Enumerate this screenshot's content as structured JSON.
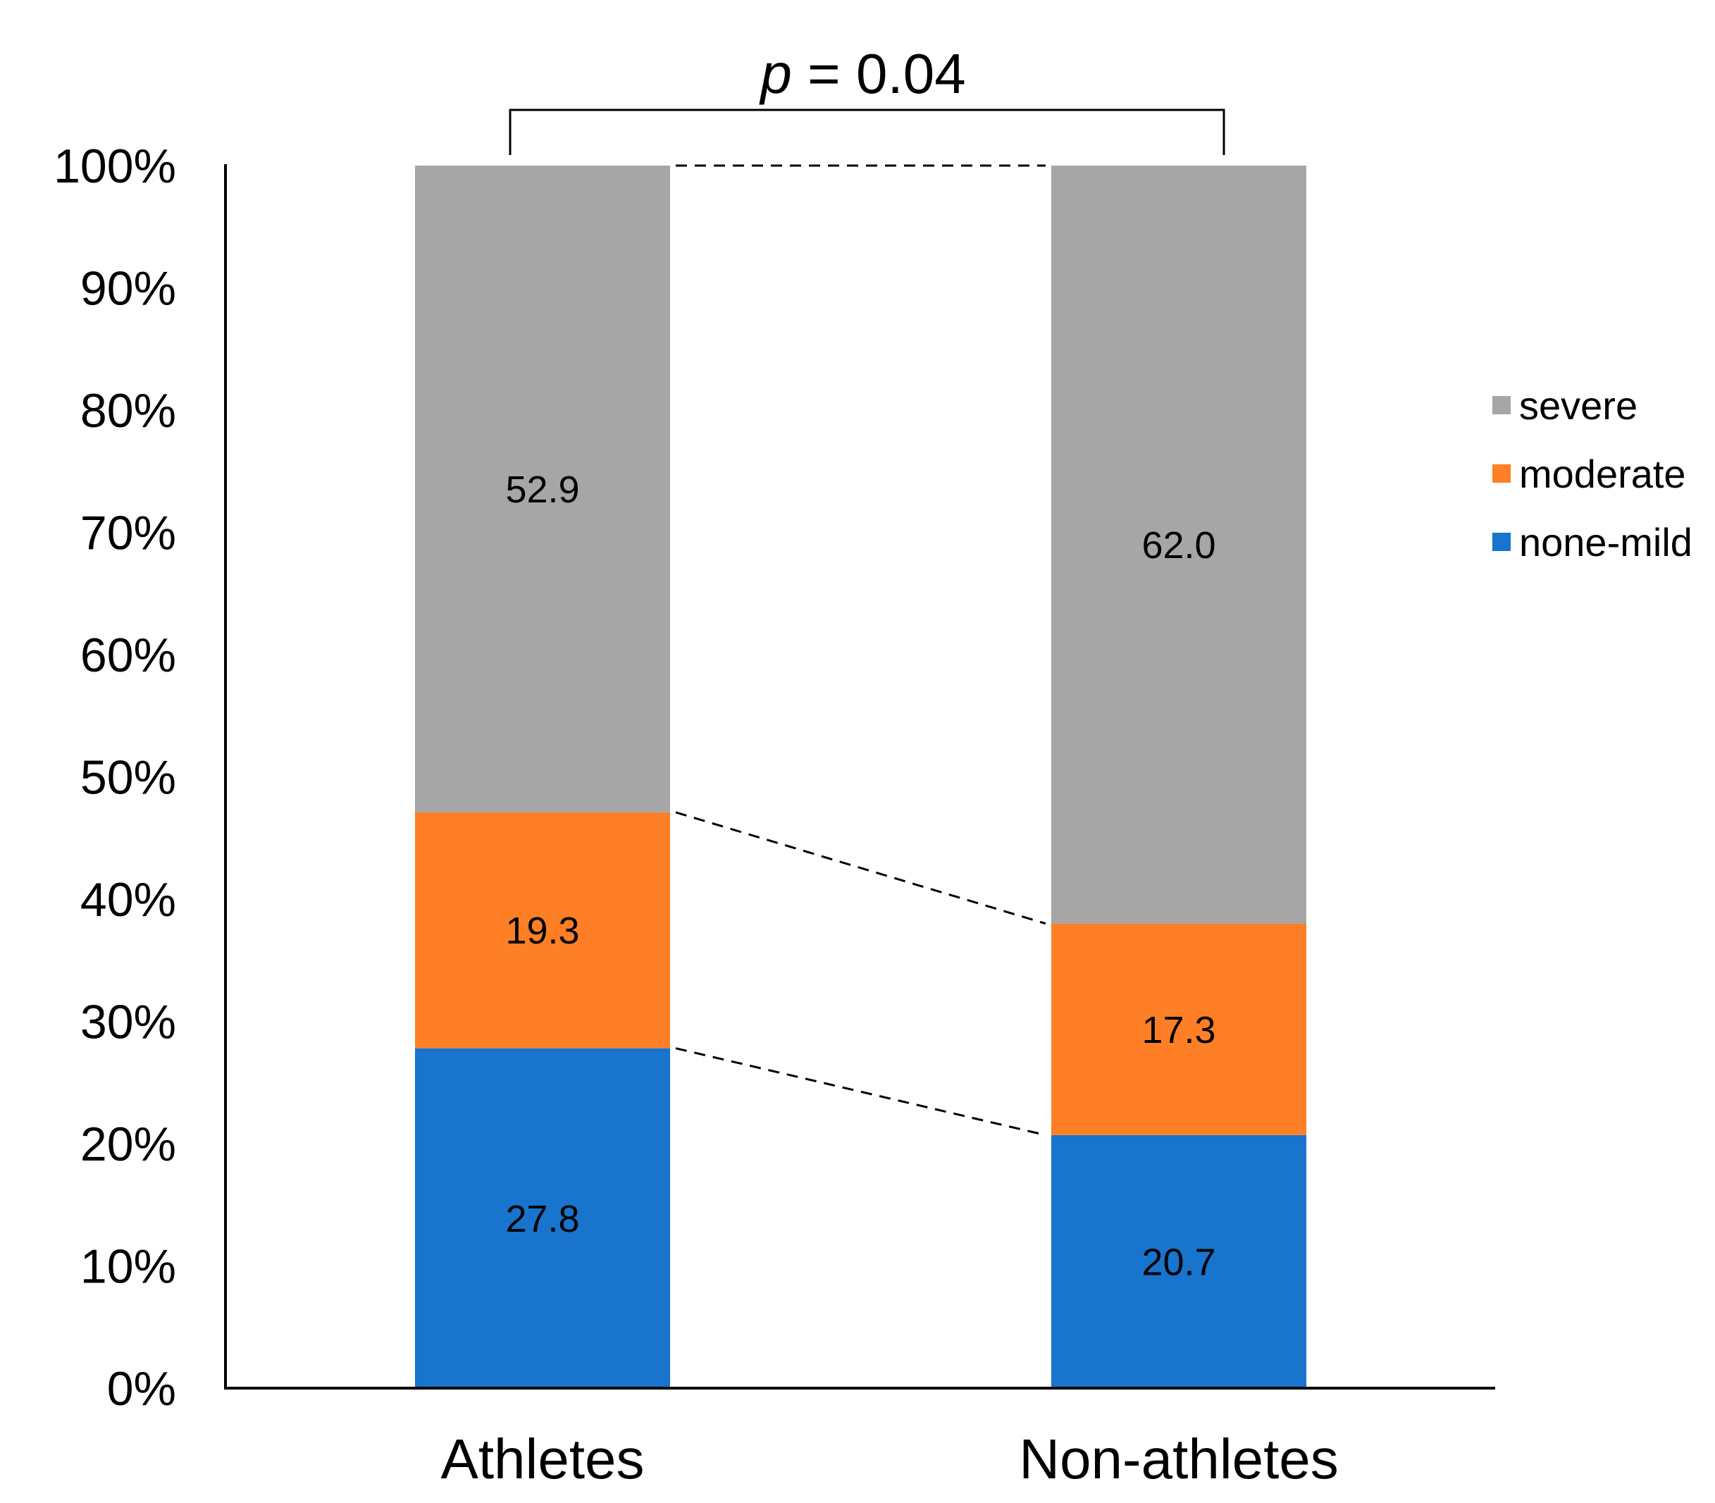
{
  "chart_data": {
    "type": "bar",
    "stacked": true,
    "percent": true,
    "categories": [
      "Athletes",
      "Non-athletes"
    ],
    "series": [
      {
        "name": "none-mild",
        "values": [
          27.8,
          20.7
        ],
        "color": "#1874CD",
        "labels": [
          "27.8",
          "20.7"
        ]
      },
      {
        "name": "moderate",
        "values": [
          19.3,
          17.3
        ],
        "color": "#FF7F27",
        "labels": [
          "19.3",
          "17.3"
        ]
      },
      {
        "name": "severe",
        "values": [
          52.9,
          62.0
        ],
        "color": "#A6A6A6",
        "labels": [
          "52.9",
          "62.0"
        ]
      }
    ],
    "legend_order": [
      "severe",
      "moderate",
      "none-mild"
    ],
    "legend_position": "right",
    "ylim": [
      0,
      100
    ],
    "yticks": [
      "0%",
      "10%",
      "20%",
      "30%",
      "40%",
      "50%",
      "60%",
      "70%",
      "80%",
      "90%",
      "100%"
    ],
    "connector_lines": true,
    "annotation": {
      "italic": "p",
      "rest": " = 0.04"
    },
    "title": "",
    "xlabel": "",
    "ylabel": ""
  }
}
